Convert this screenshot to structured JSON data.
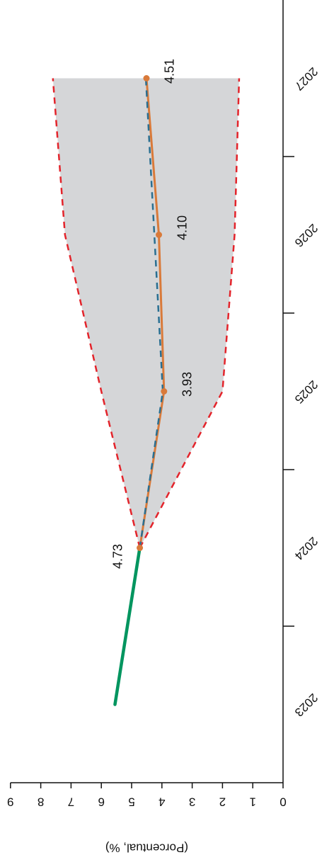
{
  "chart_data": {
    "type": "line",
    "title": "",
    "xlabel": "",
    "ylabel": "(Porcentual, %)",
    "x_categories": [
      "2023",
      "2024",
      "2025",
      "2026",
      "2027"
    ],
    "ylim": [
      0,
      9
    ],
    "y_ticks": [
      "0",
      "1",
      "2",
      "3",
      "4",
      "5",
      "6",
      "7",
      "8",
      "9"
    ],
    "grid": false,
    "legend": "none",
    "orientation": "rotated 180°",
    "series": [
      {
        "role": "historical",
        "color": "#00955f",
        "style": "solid",
        "x": [
          2023.0,
          2024.0
        ],
        "y": [
          5.55,
          4.73
        ]
      },
      {
        "role": "forecast",
        "color": "#d97a3a",
        "style": "solid-markers",
        "x": [
          2024,
          2025,
          2026,
          2027
        ],
        "y": [
          4.73,
          3.93,
          4.1,
          4.51
        ]
      },
      {
        "role": "central-path",
        "color": "#2a6f91",
        "style": "dashed",
        "x": [
          2024,
          2025,
          2026,
          2027
        ],
        "y": [
          4.73,
          3.97,
          4.25,
          4.53
        ]
      },
      {
        "role": "upper-bound",
        "color": "#e3242b",
        "style": "dashed",
        "x": [
          2024,
          2025,
          2026,
          2027
        ],
        "y": [
          4.73,
          6.0,
          7.2,
          7.6
        ]
      },
      {
        "role": "lower-bound",
        "color": "#e3242b",
        "style": "dashed",
        "x": [
          2024,
          2025,
          2026,
          2027
        ],
        "y": [
          4.73,
          2.0,
          1.6,
          1.45
        ]
      }
    ],
    "band": {
      "color": "#d5d6d8",
      "upper": "upper-bound",
      "lower": "lower-bound"
    },
    "data_labels": [
      {
        "x": 2024,
        "y": 4.73,
        "text": "4.73"
      },
      {
        "x": 2025,
        "y": 3.93,
        "text": "3.93"
      },
      {
        "x": 2026,
        "y": 4.1,
        "text": "4.10"
      },
      {
        "x": 2027,
        "y": 4.51,
        "text": "4.51"
      }
    ]
  }
}
